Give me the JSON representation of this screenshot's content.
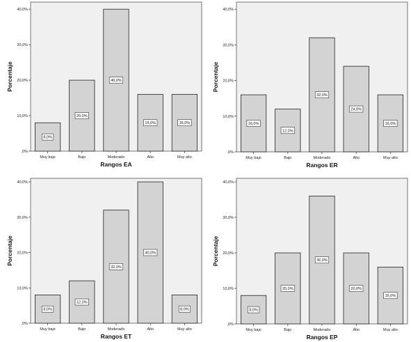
{
  "chart_data": [
    {
      "type": "bar",
      "xlabel": "Rangos EA",
      "ylabel": "Porcentaje",
      "categories": [
        "Muy bajo",
        "Bajo",
        "Moderado",
        "Alto",
        "Muy alto"
      ],
      "values": [
        8,
        20,
        40,
        16,
        16
      ],
      "data_labels": [
        "8,0%",
        "20,0%",
        "40,0%",
        "16,0%",
        "16,0%"
      ],
      "yticks": [
        0,
        10,
        20,
        30,
        40
      ],
      "ytick_labels": [
        ",0%",
        "10,0%",
        "20,0%",
        "30,0%",
        "40,0%"
      ],
      "ylim": [
        0,
        42
      ],
      "grid": false,
      "colors": {
        "plot_bg": "#f0f0f0",
        "bar_fill": "#d3d3d3",
        "bar_stroke": "#222222"
      }
    },
    {
      "type": "bar",
      "xlabel": "Rangos ER",
      "ylabel": "Porcentaje",
      "categories": [
        "Muy bajo",
        "Bajo",
        "Moderado",
        "Alto",
        "Muy alto"
      ],
      "values": [
        16,
        12,
        32,
        24,
        16
      ],
      "data_labels": [
        "16,0%",
        "12,0%",
        "32,0%",
        "24,0%",
        "16,0%"
      ],
      "yticks": [
        0,
        10,
        20,
        30,
        40
      ],
      "ytick_labels": [
        ",0%",
        "10,0%",
        "20,0%",
        "30,0%",
        "40,0%"
      ],
      "ylim": [
        0,
        42
      ],
      "grid": false,
      "colors": {
        "plot_bg": "#f0f0f0",
        "bar_fill": "#d3d3d3",
        "bar_stroke": "#222222"
      }
    },
    {
      "type": "bar",
      "xlabel": "Rangos ET",
      "ylabel": "Porcentaje",
      "categories": [
        "Muy bajo",
        "Bajo",
        "Moderado",
        "Alto",
        "Muy alto"
      ],
      "values": [
        8,
        12,
        32,
        40,
        8
      ],
      "data_labels": [
        "8,0%",
        "12,0%",
        "32,0%",
        "40,0%",
        "8,0%"
      ],
      "yticks": [
        0,
        10,
        20,
        30,
        40
      ],
      "ytick_labels": [
        ",0%",
        "10,0%",
        "20,0%",
        "30,0%",
        "40,0%"
      ],
      "ylim": [
        0,
        41
      ],
      "grid": false,
      "colors": {
        "plot_bg": "#f0f0f0",
        "bar_fill": "#d3d3d3",
        "bar_stroke": "#222222"
      }
    },
    {
      "type": "bar",
      "xlabel": "Rangos EP",
      "ylabel": "Porcentaje",
      "categories": [
        "Muy bajo",
        "Bajo",
        "Moderado",
        "Alto",
        "Muy alto"
      ],
      "values": [
        8,
        20,
        36,
        20,
        16
      ],
      "data_labels": [
        "8,0%",
        "20,0%",
        "36,0%",
        "20,0%",
        "16,0%"
      ],
      "yticks": [
        0,
        10,
        20,
        30,
        40
      ],
      "ytick_labels": [
        ",0%",
        "10,0%",
        "20,0%",
        "30,0%",
        "40,0%"
      ],
      "ylim": [
        0,
        41
      ],
      "grid": false,
      "colors": {
        "plot_bg": "#f0f0f0",
        "bar_fill": "#d3d3d3",
        "bar_stroke": "#222222"
      }
    }
  ]
}
